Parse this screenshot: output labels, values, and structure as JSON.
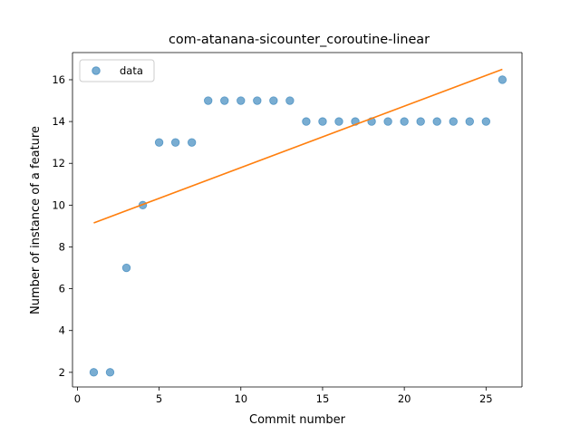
{
  "chart_data": {
    "type": "scatter",
    "title": "com-atanana-sicounter_coroutine-linear",
    "xlabel": "Commit number",
    "ylabel": "Number of instance of a feature",
    "xlim": [
      -0.3,
      27.2
    ],
    "ylim": [
      1.3,
      17.3
    ],
    "xticks": [
      0,
      5,
      10,
      15,
      20,
      25
    ],
    "yticks": [
      2,
      4,
      6,
      8,
      10,
      12,
      14,
      16
    ],
    "grid": false,
    "legend_position": "upper-left",
    "series": [
      {
        "name": "data",
        "kind": "points",
        "color": "#1f77b4",
        "x": [
          1,
          2,
          3,
          4,
          5,
          6,
          7,
          8,
          9,
          10,
          11,
          12,
          13,
          14,
          15,
          16,
          17,
          18,
          19,
          20,
          21,
          22,
          23,
          24,
          25,
          26
        ],
        "y": [
          2,
          2,
          7,
          10,
          13,
          13,
          13,
          15,
          15,
          15,
          15,
          15,
          15,
          14,
          14,
          14,
          14,
          14,
          14,
          14,
          14,
          14,
          14,
          14,
          14,
          16
        ]
      },
      {
        "kind": "line",
        "color": "#ff7f0e",
        "x": [
          1,
          26
        ],
        "y": [
          9.15,
          16.5
        ]
      }
    ]
  }
}
